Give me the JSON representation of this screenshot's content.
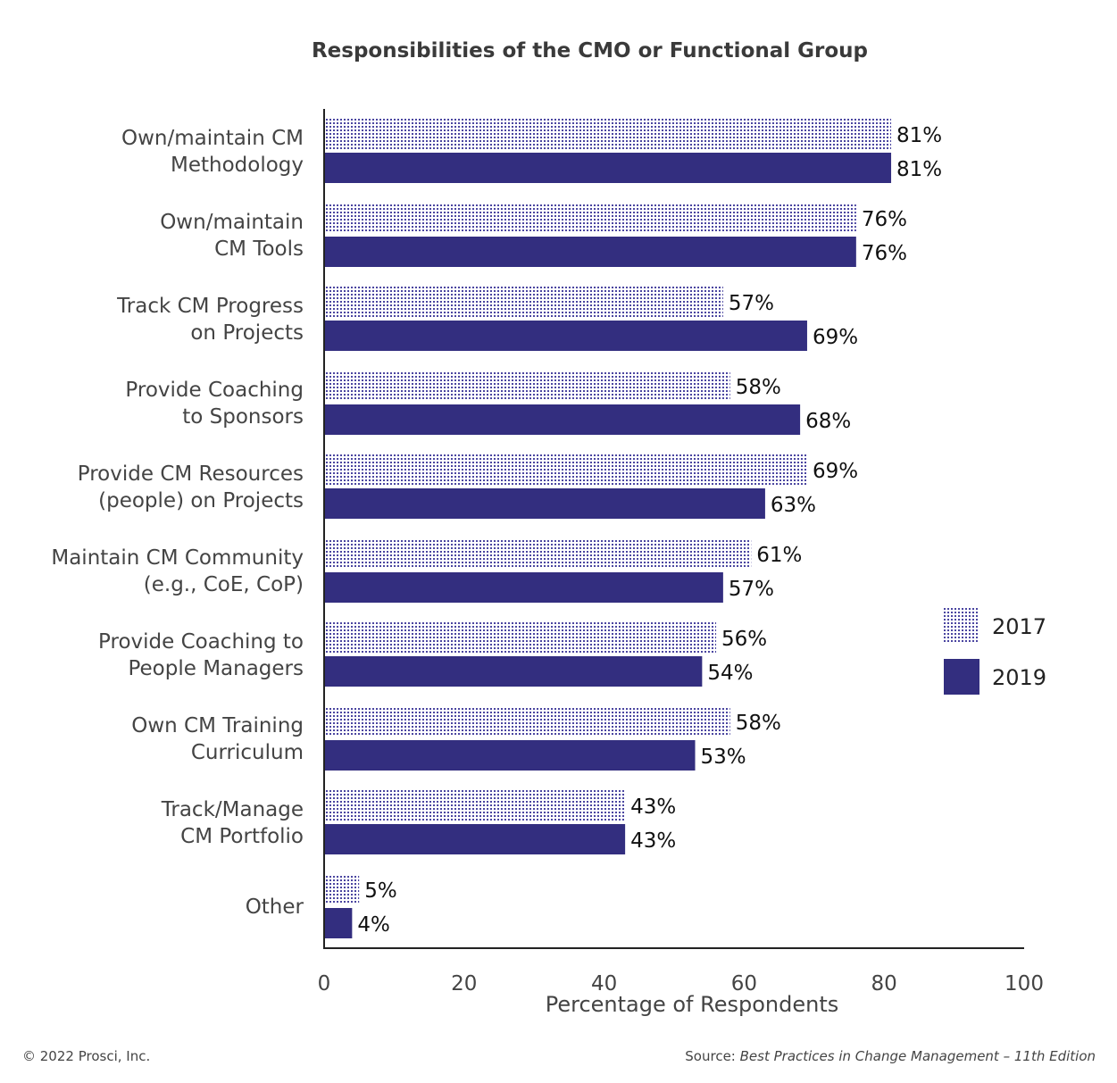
{
  "chart_data": {
    "type": "bar",
    "orientation": "horizontal",
    "title": "Responsibilities of the CMO or Functional Group",
    "xlabel": "Percentage of Respondents",
    "ylabel": "",
    "xlim": [
      0,
      100
    ],
    "xticks": [
      0,
      20,
      40,
      60,
      80,
      100
    ],
    "grid": false,
    "legend": "right",
    "categories": [
      [
        "Own/maintain CM",
        "Methodology"
      ],
      [
        "Own/maintain",
        "CM Tools"
      ],
      [
        "Track CM Progress",
        "on Projects"
      ],
      [
        "Provide Coaching",
        "to Sponsors"
      ],
      [
        "Provide CM Resources",
        "(people) on Projects"
      ],
      [
        "Maintain CM Community",
        "(e.g., CoE, CoP)"
      ],
      [
        "Provide Coaching to",
        "People Managers"
      ],
      [
        "Own CM Training",
        "Curriculum"
      ],
      [
        "Track/Manage",
        "CM Portfolio"
      ],
      [
        "Other"
      ]
    ],
    "series": [
      {
        "name": "2017",
        "pattern": "dotted",
        "color": "#332e7f",
        "values": [
          81,
          76,
          57,
          58,
          69,
          61,
          56,
          58,
          43,
          5
        ]
      },
      {
        "name": "2019",
        "pattern": "solid",
        "color": "#332e7f",
        "values": [
          81,
          76,
          69,
          68,
          63,
          57,
          54,
          53,
          43,
          4
        ]
      }
    ],
    "value_suffix": "%"
  },
  "footer": {
    "copyright": "© 2022 Prosci, Inc.",
    "source_prefix": "Source: ",
    "source_title": "Best Practices in Change Management – 11th Edition"
  }
}
